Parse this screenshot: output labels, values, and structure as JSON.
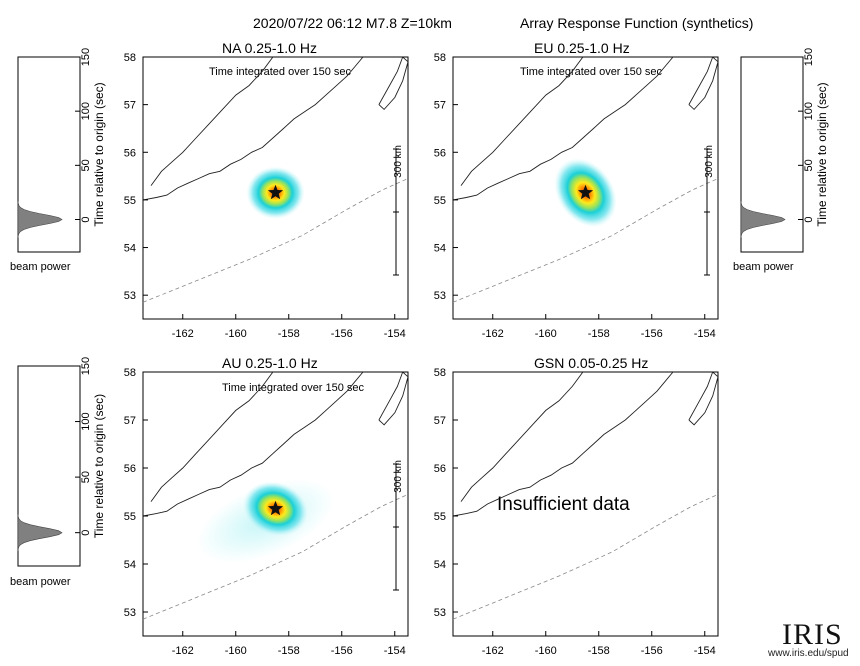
{
  "header": {
    "event": "2020/07/22 06:12  M7.8  Z=10km",
    "subtitle": "Array Response Function (synthetics)"
  },
  "colors": {
    "coast": "#222222",
    "trench": "#888888",
    "beam_fill": "#808080",
    "heat": [
      "#bff5f7",
      "#5fe0ea",
      "#1ad0d8",
      "#9be35a",
      "#ffea1c",
      "#ff8a00",
      "#e8230c"
    ],
    "star": "#111111"
  },
  "chart_data": [
    {
      "type": "heatmap",
      "id": "NA",
      "title": "NA  0.25-1.0 Hz",
      "note": "Time integrated over 150 sec",
      "xlim": [
        -163.5,
        -153.5
      ],
      "ylim": [
        52.5,
        58
      ],
      "xticks": [
        -162,
        -160,
        -158,
        -156,
        -154
      ],
      "yticks": [
        53,
        54,
        55,
        56,
        57,
        58
      ],
      "epicenter": {
        "lon": -158.5,
        "lat": 55.15
      },
      "beam": {
        "rx_deg": 1.1,
        "ry_deg": 0.55,
        "tilt_deg": 0,
        "tail": false
      },
      "scalebar": "300 km",
      "beam_power_panel": {
        "xlabel": "beam power",
        "ylabel": "Time relative to origin (sec)",
        "ylim": [
          -30,
          150
        ],
        "yticks": [
          0,
          50,
          100,
          150
        ],
        "peak_time": 0
      }
    },
    {
      "type": "heatmap",
      "id": "EU",
      "title": "EU  0.25-1.0 Hz",
      "note": "Time integrated over 150 sec",
      "xlim": [
        -163.5,
        -153.5
      ],
      "ylim": [
        52.5,
        58
      ],
      "xticks": [
        -162,
        -160,
        -158,
        -156,
        -154
      ],
      "yticks": [
        53,
        54,
        55,
        56,
        57,
        58
      ],
      "epicenter": {
        "lon": -158.5,
        "lat": 55.15
      },
      "beam": {
        "rx_deg": 1.05,
        "ry_deg": 0.78,
        "tilt_deg": -35,
        "tail": false
      },
      "scalebar": "300 km",
      "beam_power_panel": {
        "xlabel": "beam power",
        "ylabel": "Time relative to origin (sec)",
        "ylim": [
          -30,
          150
        ],
        "yticks": [
          0,
          50,
          100,
          150
        ],
        "peak_time": 0
      }
    },
    {
      "type": "heatmap",
      "id": "AU",
      "title": "AU  0.25-1.0 Hz",
      "note": "Time integrated over 150 sec",
      "xlim": [
        -163.5,
        -153.5
      ],
      "ylim": [
        52.5,
        58
      ],
      "xticks": [
        -162,
        -160,
        -158,
        -156,
        -154
      ],
      "yticks": [
        53,
        54,
        55,
        56,
        57,
        58
      ],
      "epicenter": {
        "lon": -158.5,
        "lat": 55.15
      },
      "beam": {
        "rx_deg": 1.25,
        "ry_deg": 0.55,
        "tilt_deg": 20,
        "tail": true
      },
      "scalebar": "300 km",
      "beam_power_panel": {
        "xlabel": "beam power",
        "ylabel": "Time relative to origin (sec)",
        "ylim": [
          -30,
          150
        ],
        "yticks": [
          0,
          50,
          100,
          150
        ],
        "peak_time": 0
      }
    },
    {
      "type": "heatmap",
      "id": "GSN",
      "title": "GSN  0.05-0.25 Hz",
      "note": "",
      "xlim": [
        -163.5,
        -153.5
      ],
      "ylim": [
        52.5,
        58
      ],
      "xticks": [
        -162,
        -160,
        -158,
        -156,
        -154
      ],
      "yticks": [
        53,
        54,
        55,
        56,
        57,
        58
      ],
      "message": "Insufficient data"
    }
  ],
  "logo": {
    "brand": "IRIS",
    "url": "www.iris.edu/spud"
  }
}
